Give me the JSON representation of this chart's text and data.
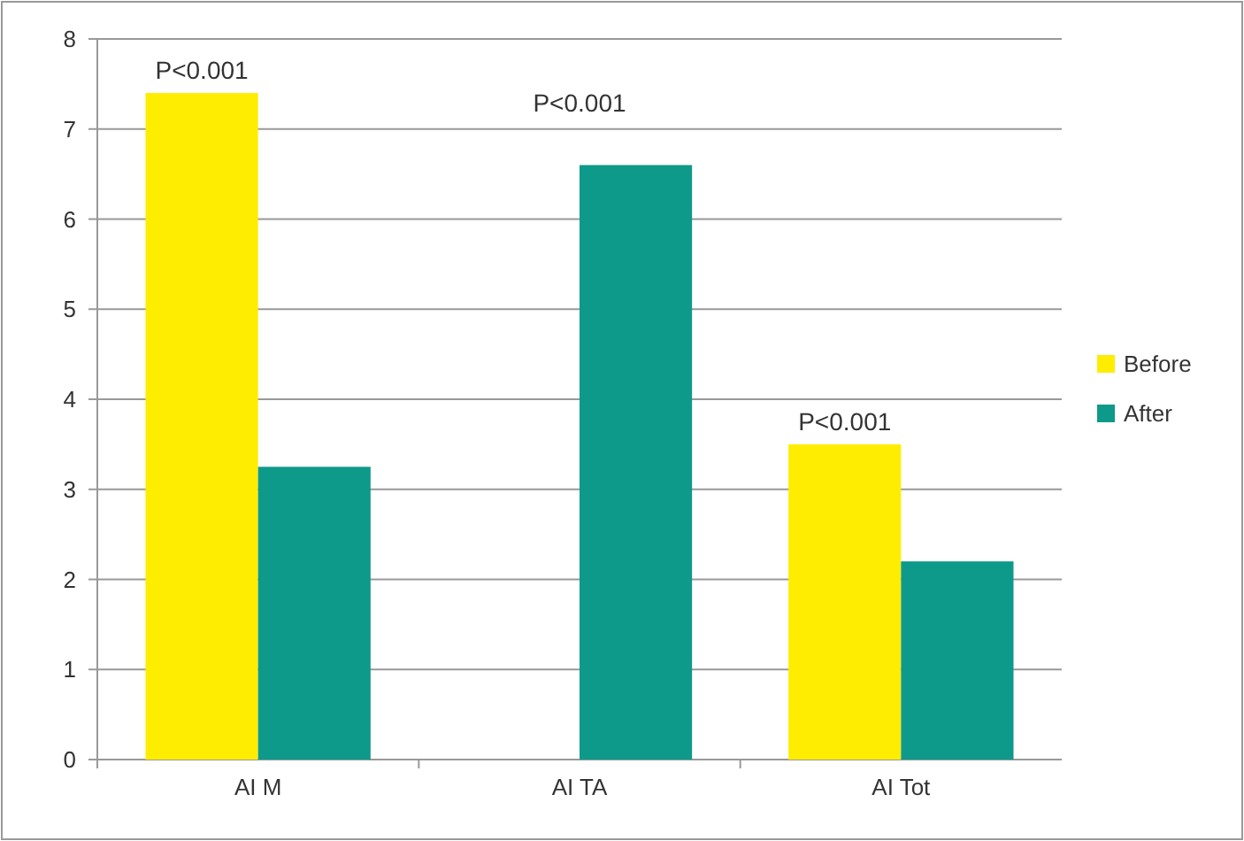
{
  "chart_data": {
    "type": "bar",
    "categories": [
      "AI M",
      "AI TA",
      "AI Tot"
    ],
    "series": [
      {
        "name": "Before",
        "color": "#ffed00",
        "values": [
          7.4,
          null,
          3.5
        ]
      },
      {
        "name": "After",
        "color": "#0e9a8a",
        "values": [
          3.25,
          6.6,
          2.2
        ]
      }
    ],
    "ylim": [
      0,
      8
    ],
    "yticks": [
      0,
      1,
      2,
      3,
      4,
      5,
      6,
      7,
      8
    ],
    "grid": "y",
    "legend": "right",
    "annotations": [
      "P<0.001",
      "P<0.001",
      "P<0.001"
    ]
  }
}
